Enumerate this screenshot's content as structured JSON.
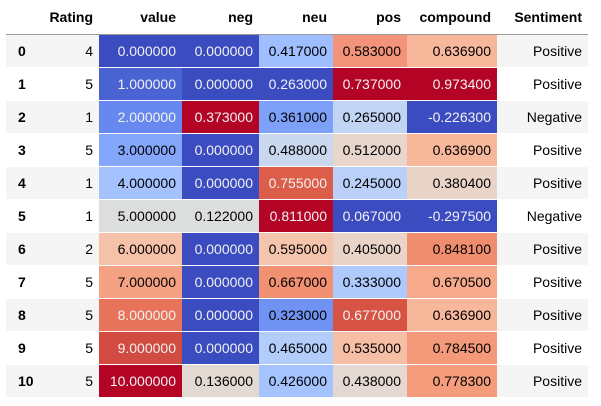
{
  "table": {
    "columns": [
      {
        "key": "idx",
        "label": ""
      },
      {
        "key": "rating",
        "label": "Rating"
      },
      {
        "key": "value",
        "label": "value"
      },
      {
        "key": "neg",
        "label": "neg"
      },
      {
        "key": "neu",
        "label": "neu"
      },
      {
        "key": "pos",
        "label": "pos"
      },
      {
        "key": "compound",
        "label": "compound"
      },
      {
        "key": "sentiment",
        "label": "Sentiment"
      }
    ],
    "rows": [
      {
        "idx": "0",
        "rating": "4",
        "value": "0.000000",
        "neg": "0.000000",
        "neu": "0.417000",
        "pos": "0.583000",
        "compound": "0.636900",
        "sentiment": "Positive"
      },
      {
        "idx": "1",
        "rating": "5",
        "value": "1.000000",
        "neg": "0.000000",
        "neu": "0.263000",
        "pos": "0.737000",
        "compound": "0.973400",
        "sentiment": "Positive"
      },
      {
        "idx": "2",
        "rating": "1",
        "value": "2.000000",
        "neg": "0.373000",
        "neu": "0.361000",
        "pos": "0.265000",
        "compound": "-0.226300",
        "sentiment": "Negative"
      },
      {
        "idx": "3",
        "rating": "5",
        "value": "3.000000",
        "neg": "0.000000",
        "neu": "0.488000",
        "pos": "0.512000",
        "compound": "0.636900",
        "sentiment": "Positive"
      },
      {
        "idx": "4",
        "rating": "1",
        "value": "4.000000",
        "neg": "0.000000",
        "neu": "0.755000",
        "pos": "0.245000",
        "compound": "0.380400",
        "sentiment": "Positive"
      },
      {
        "idx": "5",
        "rating": "1",
        "value": "5.000000",
        "neg": "0.122000",
        "neu": "0.811000",
        "pos": "0.067000",
        "compound": "-0.297500",
        "sentiment": "Negative"
      },
      {
        "idx": "6",
        "rating": "2",
        "value": "6.000000",
        "neg": "0.000000",
        "neu": "0.595000",
        "pos": "0.405000",
        "compound": "0.848100",
        "sentiment": "Positive"
      },
      {
        "idx": "7",
        "rating": "5",
        "value": "7.000000",
        "neg": "0.000000",
        "neu": "0.667000",
        "pos": "0.333000",
        "compound": "0.670500",
        "sentiment": "Positive"
      },
      {
        "idx": "8",
        "rating": "5",
        "value": "8.000000",
        "neg": "0.000000",
        "neu": "0.323000",
        "pos": "0.677000",
        "compound": "0.636900",
        "sentiment": "Positive"
      },
      {
        "idx": "9",
        "rating": "5",
        "value": "9.000000",
        "neg": "0.000000",
        "neu": "0.465000",
        "pos": "0.535000",
        "compound": "0.784500",
        "sentiment": "Positive"
      },
      {
        "idx": "10",
        "rating": "5",
        "value": "10.000000",
        "neg": "0.136000",
        "neu": "0.426000",
        "pos": "0.438000",
        "compound": "0.778300",
        "sentiment": "Positive"
      }
    ],
    "cell_colors": {
      "value": [
        "#3b4cc0",
        "#4a63d3",
        "#6788ee",
        "#84a7fc",
        "#a3c2fe",
        "#dcdddd",
        "#f5c1a9",
        "#f4a283",
        "#e7735a",
        "#d24b40",
        "#b40426"
      ],
      "neg": [
        "#3b4cc0",
        "#3b4cc0",
        "#b40426",
        "#3b4cc0",
        "#3b4cc0",
        "#dcdddd",
        "#3b4cc0",
        "#3b4cc0",
        "#3b4cc0",
        "#3b4cc0",
        "#e3d9d3"
      ],
      "neu": [
        "#9ebeff",
        "#3b4cc0",
        "#7da0f9",
        "#cad8ef",
        "#dc5d4a",
        "#b40426",
        "#f5c4ac",
        "#f29072",
        "#6f92f3",
        "#b3cdfb",
        "#a5c3fe"
      ],
      "pos": [
        "#f3947a",
        "#b40426",
        "#c1d4f4",
        "#e8d6cc",
        "#bad0f8",
        "#3b4cc0",
        "#ead4c8",
        "#aec9fc",
        "#d75445",
        "#f6bea4",
        "#e4d9d2"
      ],
      "compound": [
        "#f7b79b",
        "#b40426",
        "#3b4cc0",
        "#f7b79b",
        "#ead4c8",
        "#3b4cc0",
        "#f18d6f",
        "#f7a98b",
        "#f7b79b",
        "#f49a7b",
        "#f59c7d"
      ]
    },
    "light_text_cells": {
      "value": [
        true,
        true,
        true,
        false,
        false,
        false,
        false,
        false,
        true,
        true,
        true
      ],
      "neg": [
        true,
        true,
        true,
        true,
        true,
        false,
        true,
        true,
        true,
        true,
        false
      ],
      "neu": [
        false,
        true,
        false,
        false,
        true,
        true,
        false,
        false,
        false,
        false,
        false
      ],
      "pos": [
        false,
        true,
        false,
        false,
        false,
        true,
        false,
        false,
        true,
        false,
        false
      ],
      "compound": [
        false,
        true,
        true,
        false,
        false,
        true,
        false,
        false,
        false,
        false,
        false
      ]
    }
  }
}
